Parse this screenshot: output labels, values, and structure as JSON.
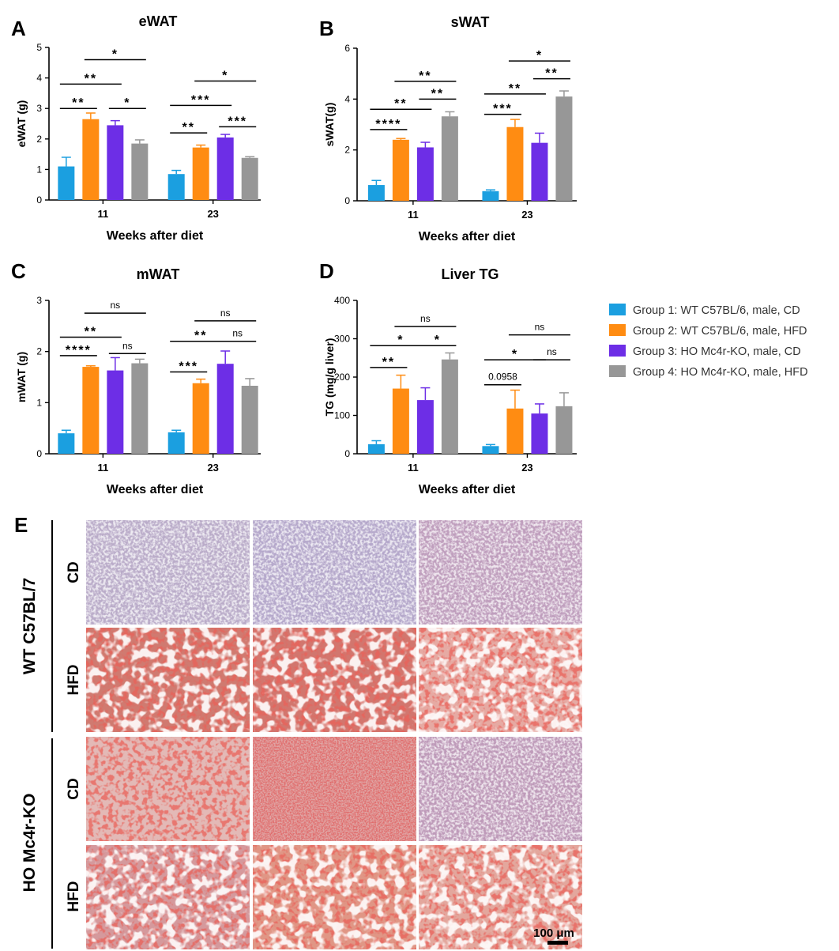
{
  "legend": [
    {
      "label": "Group 1: WT C57BL/6, male, CD",
      "color": "#1b9fe0"
    },
    {
      "label": "Group 2: WT C57BL/6, male, HFD",
      "color": "#ff8c12"
    },
    {
      "label": "Group 3: HO Mc4r-KO, male, CD",
      "color": "#6d2ee6"
    },
    {
      "label": "Group 4: HO Mc4r-KO, male, HFD",
      "color": "#979797"
    }
  ],
  "chart_data": [
    {
      "panel": "A",
      "type": "bar",
      "title": "eWAT",
      "xlabel": "Weeks after diet",
      "ylabel": "eWAT (g)",
      "ylim": [
        0,
        5
      ],
      "yticks": [
        "0",
        "1",
        "2",
        "3",
        "4",
        "5"
      ],
      "categories": [
        "11",
        "23"
      ],
      "series": [
        {
          "name": "Group 1: WT C57BL/6, male, CD",
          "values": [
            1.1,
            0.85
          ],
          "errors": [
            0.3,
            0.12
          ]
        },
        {
          "name": "Group 2: WT C57BL/6, male, HFD",
          "values": [
            2.65,
            1.72
          ],
          "errors": [
            0.2,
            0.08
          ]
        },
        {
          "name": "Group 3: HO Mc4r-KO, male, CD",
          "values": [
            2.45,
            2.05
          ],
          "errors": [
            0.15,
            0.1
          ]
        },
        {
          "name": "Group 4: HO Mc4r-KO, male, HFD",
          "values": [
            1.85,
            1.38
          ],
          "errors": [
            0.12,
            0.04
          ]
        }
      ],
      "significance": [
        {
          "cat": 0,
          "from": 1,
          "to": 2,
          "level": 3.0,
          "label": "**"
        },
        {
          "cat": 0,
          "from": 1,
          "to": 3,
          "level": 3.8,
          "label": "**"
        },
        {
          "cat": 0,
          "from": 2,
          "to": 4,
          "level": 4.6,
          "label": "*"
        },
        {
          "cat": 0,
          "from": 3,
          "to": 4,
          "level": 3.0,
          "label": "*"
        },
        {
          "cat": 1,
          "from": 1,
          "to": 2,
          "level": 2.2,
          "label": "**"
        },
        {
          "cat": 1,
          "from": 1,
          "to": 3,
          "level": 3.1,
          "label": "***"
        },
        {
          "cat": 1,
          "from": 2,
          "to": 4,
          "level": 3.9,
          "label": "*"
        },
        {
          "cat": 1,
          "from": 3,
          "to": 4,
          "level": 2.4,
          "label": "***"
        }
      ]
    },
    {
      "panel": "B",
      "type": "bar",
      "title": "sWAT",
      "xlabel": "Weeks after diet",
      "ylabel": "sWAT(g)",
      "ylim": [
        0,
        6
      ],
      "yticks": [
        "0",
        "2",
        "4",
        "6"
      ],
      "categories": [
        "11",
        "23"
      ],
      "series": [
        {
          "name": "Group 1: WT C57BL/6, male, CD",
          "values": [
            0.62,
            0.38
          ],
          "errors": [
            0.18,
            0.05
          ]
        },
        {
          "name": "Group 2: WT C57BL/6, male, HFD",
          "values": [
            2.4,
            2.9
          ],
          "errors": [
            0.05,
            0.3
          ]
        },
        {
          "name": "Group 3: HO Mc4r-KO, male, CD",
          "values": [
            2.1,
            2.28
          ],
          "errors": [
            0.2,
            0.38
          ]
        },
        {
          "name": "Group 4: HO Mc4r-KO, male, HFD",
          "values": [
            3.32,
            4.1
          ],
          "errors": [
            0.18,
            0.22
          ]
        }
      ],
      "significance": [
        {
          "cat": 0,
          "from": 1,
          "to": 2,
          "level": 2.8,
          "label": "****"
        },
        {
          "cat": 0,
          "from": 1,
          "to": 3,
          "level": 3.6,
          "label": "**"
        },
        {
          "cat": 0,
          "from": 3,
          "to": 4,
          "level": 4.0,
          "label": "**"
        },
        {
          "cat": 0,
          "from": 2,
          "to": 4,
          "level": 4.7,
          "label": "**"
        },
        {
          "cat": 1,
          "from": 1,
          "to": 2,
          "level": 3.4,
          "label": "***"
        },
        {
          "cat": 1,
          "from": 1,
          "to": 3,
          "level": 4.2,
          "label": "**"
        },
        {
          "cat": 1,
          "from": 3,
          "to": 4,
          "level": 4.8,
          "label": "**"
        },
        {
          "cat": 1,
          "from": 2,
          "to": 4,
          "level": 5.5,
          "label": "*"
        }
      ]
    },
    {
      "panel": "C",
      "type": "bar",
      "title": "mWAT",
      "xlabel": "Weeks after diet",
      "ylabel": "mWAT (g)",
      "ylim": [
        0,
        3
      ],
      "yticks": [
        "0",
        "1",
        "2",
        "3"
      ],
      "categories": [
        "11",
        "23"
      ],
      "series": [
        {
          "name": "Group 1: WT C57BL/6, male, CD",
          "values": [
            0.4,
            0.42
          ],
          "errors": [
            0.06,
            0.04
          ]
        },
        {
          "name": "Group 2: WT C57BL/6, male, HFD",
          "values": [
            1.7,
            1.38
          ],
          "errors": [
            0.02,
            0.08
          ]
        },
        {
          "name": "Group 3: HO Mc4r-KO, male, CD",
          "values": [
            1.63,
            1.76
          ],
          "errors": [
            0.25,
            0.25
          ]
        },
        {
          "name": "Group 4: HO Mc4r-KO, male, HFD",
          "values": [
            1.77,
            1.33
          ],
          "errors": [
            0.08,
            0.14
          ]
        }
      ],
      "significance": [
        {
          "cat": 0,
          "from": 1,
          "to": 2,
          "level": 1.92,
          "label": "****"
        },
        {
          "cat": 0,
          "from": 1,
          "to": 3,
          "level": 2.28,
          "label": "**"
        },
        {
          "cat": 0,
          "from": 3,
          "to": 4,
          "level": 1.96,
          "label": "ns"
        },
        {
          "cat": 0,
          "from": 2,
          "to": 4,
          "level": 2.75,
          "label": "ns"
        },
        {
          "cat": 1,
          "from": 1,
          "to": 2,
          "level": 1.6,
          "label": "***"
        },
        {
          "cat": 1,
          "from": 1,
          "to": 3,
          "level": 2.2,
          "label": "**"
        },
        {
          "cat": 1,
          "from": 3,
          "to": 4,
          "level": 2.2,
          "label": "ns"
        },
        {
          "cat": 1,
          "from": 2,
          "to": 4,
          "level": 2.6,
          "label": "ns"
        }
      ]
    },
    {
      "panel": "D",
      "type": "bar",
      "title": "Liver TG",
      "xlabel": "Weeks after diet",
      "ylabel": "TG (mg/g liver)",
      "ylim": [
        0,
        400
      ],
      "yticks": [
        "0",
        "100",
        "200",
        "300",
        "400"
      ],
      "categories": [
        "11",
        "23"
      ],
      "series": [
        {
          "name": "Group 1: WT C57BL/6, male, CD",
          "values": [
            25,
            20
          ],
          "errors": [
            9,
            4
          ]
        },
        {
          "name": "Group 2: WT C57BL/6, male, HFD",
          "values": [
            170,
            118
          ],
          "errors": [
            35,
            48
          ]
        },
        {
          "name": "Group 3: HO Mc4r-KO, male, CD",
          "values": [
            140,
            105
          ],
          "errors": [
            32,
            25
          ]
        },
        {
          "name": "Group 4: HO Mc4r-KO, male, HFD",
          "values": [
            246,
            124
          ],
          "errors": [
            17,
            35
          ]
        }
      ],
      "significance": [
        {
          "cat": 0,
          "from": 1,
          "to": 2,
          "level": 225,
          "label": "**"
        },
        {
          "cat": 0,
          "from": 1,
          "to": 3,
          "level": 282,
          "label": "*"
        },
        {
          "cat": 0,
          "from": 3,
          "to": 4,
          "level": 282,
          "label": "*"
        },
        {
          "cat": 0,
          "from": 2,
          "to": 4,
          "level": 332,
          "label": "ns"
        },
        {
          "cat": 1,
          "from": 1,
          "to": 2,
          "level": 180,
          "label": "0.0958"
        },
        {
          "cat": 1,
          "from": 1,
          "to": 3,
          "level": 245,
          "label": "*"
        },
        {
          "cat": 1,
          "from": 3,
          "to": 4,
          "level": 245,
          "label": "ns"
        },
        {
          "cat": 1,
          "from": 2,
          "to": 4,
          "level": 310,
          "label": "ns"
        }
      ]
    }
  ],
  "histology": {
    "panel": "E",
    "groups": [
      "WT C57BL/7",
      "HO Mc4r-KO"
    ],
    "diets": [
      "CD",
      "HFD"
    ],
    "scale_bar": "100 μm"
  }
}
